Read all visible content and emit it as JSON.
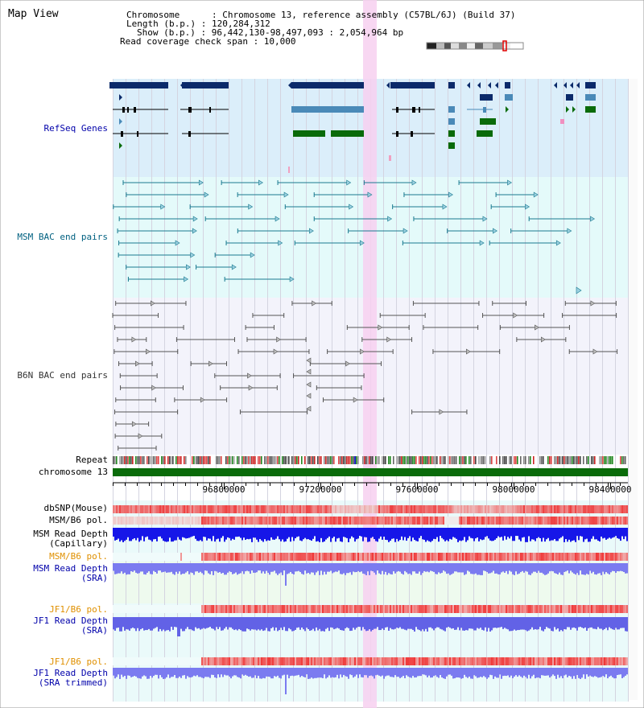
{
  "app": {
    "title": "Map View"
  },
  "info": {
    "chromosome_line": "Chromosome      : Chromosome 13, reference assembly (C57BL/6J) (Build 37)",
    "length_line": "Length (b.p.) : 120,284,312",
    "show_line": "Show (b.p.) : 96,442,130-98,497,093 : 2,054,964 bp",
    "coverage_line": "Read coverage check span : 10,000"
  },
  "tracks": {
    "refseq": "RefSeq Genes",
    "msm_bac": "MSM BAC end pairs",
    "b6n_bac": "B6N BAC end pairs",
    "repeat": "Repeat",
    "chromosome": "chromosome 13",
    "dbsnp": "dbSNP(Mouse)",
    "msm_b6_pol_1": "MSM/B6 pol.",
    "msm_depth_cap": "MSM Read Depth\n(Capillary)",
    "msm_b6_pol_2": "MSM/B6 pol.",
    "msm_depth_sra": "MSM Read Depth\n(SRA)",
    "jf1_b6_pol_1": "JF1/B6 pol.",
    "jf1_depth_sra": "JF1 Read Depth\n(SRA)",
    "jf1_b6_pol_2": "JF1/B6 pol.",
    "jf1_depth_trim": "JF1 Read Depth\n(SRA trimmed)"
  },
  "axis": {
    "ticks": [
      "96800000",
      "97200000",
      "97600000",
      "98000000",
      "98400000"
    ]
  },
  "colors": {
    "refseq_bg": "#dbeefa",
    "msm_bg": "#e4fafa",
    "b6n_bg": "#f3f3fb",
    "highlight": "#f7d0f0",
    "navy": "#0b2a6a",
    "steel": "#4a8ab8",
    "green": "#0a6b0a",
    "teal": "#1a7a90",
    "gray": "#666666",
    "label_blue": "#0000aa",
    "label_teal": "#006080",
    "label_orange": "#e09000"
  }
}
